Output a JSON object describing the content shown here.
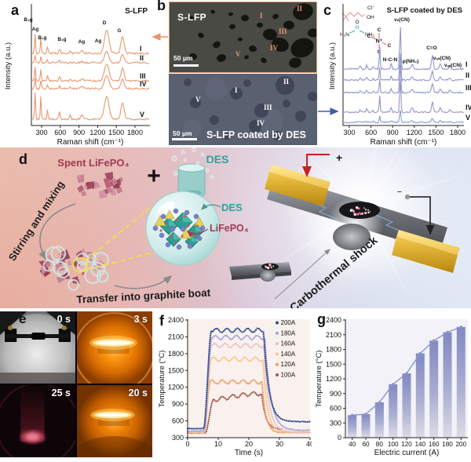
{
  "colors": {
    "panel_a_curve": "#e8986f",
    "panel_a_title": "#e8875a",
    "panel_c_curve": "#9096cb",
    "panel_c_title": "#2c3f96",
    "annotation_red": "#e05a5a",
    "annotation_cyan": "#2fa9c0",
    "connector_orange": "#e8926b",
    "connector_blue": "#4059a8",
    "teal": "#29a39b",
    "maroon": "#a13a55",
    "gold": "#e2b13c",
    "plot_bg_f": "#f9f1ee",
    "plot_bg_g": "#f2f2f8",
    "bar_color_top": "#8089c2",
    "bar_line": "#8d95c9"
  },
  "panel_a": {
    "label": "a"
  },
  "panel_b": {
    "label": "b",
    "top": {
      "title": "S-LFP",
      "scalebar": "50 μm",
      "markers": [
        {
          "t": "I",
          "x": 115,
          "y": 13
        },
        {
          "t": "II",
          "x": 162,
          "y": 4
        },
        {
          "t": "III",
          "x": 139,
          "y": 33
        },
        {
          "t": "IV",
          "x": 128,
          "y": 54
        },
        {
          "t": "V",
          "x": 84,
          "y": 62
        }
      ]
    },
    "bottom": {
      "title": "S-LFP coated by DES",
      "scalebar": "50 μm",
      "markers": [
        {
          "t": "II",
          "x": 146,
          "y": 6
        },
        {
          "t": "I",
          "x": 84,
          "y": 17
        },
        {
          "t": "V",
          "x": 34,
          "y": 29
        },
        {
          "t": "III",
          "x": 121,
          "y": 39
        },
        {
          "t": "IV",
          "x": 112,
          "y": 59
        }
      ]
    }
  },
  "panel_c": {
    "label": "c",
    "molecules": {
      "choline_cl": "Cl⁻",
      "choline_oh": "OH",
      "urea_o": "O",
      "urea_h2n": "H₂N",
      "urea_nh2": "NH₂",
      "frag_n": "N⁺",
      "frag_c": "C"
    }
  },
  "panel_d": {
    "label": "d",
    "spent_label": "Spent LiFePO₄",
    "plus": "+",
    "des_beaker_label": "DES",
    "stirring_label": "Stirring and mixing",
    "des_bubble_label": "DES",
    "lifepo4_bubble_label": "LiFePO₄",
    "transfer_label": "Transfer into graphite boat",
    "shock_label": "Carbothermal shock",
    "electrode_plus": "+",
    "electrode_minus": "−"
  },
  "panel_e": {
    "label": "e",
    "frames": [
      {
        "time": "0 s"
      },
      {
        "time": "3 s"
      },
      {
        "time": "25 s"
      },
      {
        "time": "20 s"
      }
    ]
  },
  "panel_f": {
    "label": "f"
  },
  "panel_g": {
    "label": "g"
  },
  "chart_data": [
    {
      "id": "panel_a_raman",
      "panel": "a",
      "type": "line",
      "title": "S-LFP",
      "xlabel": "Raman shift (cm⁻¹)",
      "ylabel": "Intensity (a.u.)",
      "xlim": [
        130,
        2030
      ],
      "x_ticks": [
        300,
        600,
        900,
        1200,
        1500,
        1800
      ],
      "curves": [
        "I",
        "II",
        "III",
        "IV",
        "V"
      ],
      "peaks": [
        {
          "label": "B₂g",
          "x": 195
        },
        {
          "label": "Ag",
          "x": 287
        },
        {
          "label": "B₁g",
          "x": 395
        },
        {
          "label": "B₁g",
          "x": 590
        },
        {
          "label": "Ag",
          "x": 760
        },
        {
          "label": "Ag",
          "x": 950
        },
        {
          "label": "D",
          "x": 1345
        },
        {
          "label": "G",
          "x": 1600
        }
      ]
    },
    {
      "id": "panel_c_raman",
      "panel": "c",
      "type": "line",
      "title": "S-LFP coated by DES",
      "xlabel": "Raman shift (cm⁻¹)",
      "ylabel": "Intensity (a.u.)",
      "xlim": [
        130,
        2030
      ],
      "x_ticks": [
        300,
        600,
        900,
        1200,
        1500,
        1800
      ],
      "curves": [
        "I",
        "II",
        "III",
        "IV",
        "V"
      ],
      "peaks": [
        {
          "label": "N-C-N",
          "x": 880,
          "color": "red"
        },
        {
          "label": "νₛ(CN)",
          "x": 1005,
          "color": "cyan"
        },
        {
          "label": "ρ(NH₂)",
          "x": 1170,
          "color": "cyan"
        },
        {
          "label": "C=O",
          "x": 1450,
          "color": "cyan"
        },
        {
          "label": "νₐₛ(CN)",
          "x": 1560,
          "color": "cyan"
        },
        {
          "label": "νₐₛ(CN)",
          "x": 1690,
          "color": "cyan"
        }
      ]
    },
    {
      "id": "panel_f_temperature_vs_time",
      "panel": "f",
      "type": "scatter",
      "xlabel": "Time (s)",
      "ylabel": "Temperature (°C)",
      "xlim": [
        0,
        40
      ],
      "ylim": [
        300,
        2400
      ],
      "x_ticks": [
        0,
        10,
        20,
        30,
        40
      ],
      "y_ticks": [
        300,
        600,
        900,
        1200,
        1500,
        1800,
        2100,
        2400
      ],
      "legend_position": "top-right",
      "series": [
        {
          "name": "200A",
          "color": "#2d4a8e",
          "start_temp": 465,
          "plateau_temp": 2215,
          "final_temp": 585,
          "heat_on_s": 5.2,
          "heat_off_s": 24.8,
          "trace_end_s": 40
        },
        {
          "name": "180A",
          "color": "#a59fd3",
          "start_temp": 420,
          "plateau_temp": 2090,
          "final_temp": 430,
          "heat_on_s": 5.3,
          "heat_off_s": 25.2,
          "trace_end_s": 40
        },
        {
          "name": "160A",
          "color": "#e7bcca",
          "start_temp": 405,
          "plateau_temp": 1945,
          "final_temp": 400,
          "heat_on_s": 5.4,
          "heat_off_s": 24.9,
          "trace_end_s": 40
        },
        {
          "name": "140A",
          "color": "#f7c687",
          "start_temp": 395,
          "plateau_temp": 1700,
          "final_temp": 395,
          "heat_on_s": 5.5,
          "heat_off_s": 24.6,
          "trace_end_s": 40
        },
        {
          "name": "120A",
          "color": "#f09d62",
          "start_temp": 390,
          "plateau_temp": 1295,
          "final_temp": 390,
          "heat_on_s": 5.4,
          "heat_off_s": 24.3,
          "trace_end_s": 40
        },
        {
          "name": "100A",
          "color": "#a4574c",
          "start_temp": 385,
          "plateau_temp": 1085,
          "final_temp": 450,
          "heat_on_s": 5.8,
          "heat_off_s": 24.2,
          "trace_end_s": 31
        }
      ]
    },
    {
      "id": "panel_g_temperature_vs_current",
      "panel": "g",
      "type": "bar",
      "xlabel": "Electric current (A)",
      "ylabel": "Temperature (°C)",
      "ylim": [
        0,
        2400
      ],
      "y_ticks": [
        0,
        300,
        600,
        900,
        1200,
        1500,
        1800,
        2100,
        2400
      ],
      "categories": [
        40,
        60,
        80,
        100,
        120,
        140,
        160,
        180,
        200
      ],
      "values": [
        460,
        480,
        720,
        1090,
        1310,
        1720,
        1980,
        2150,
        2260
      ],
      "overlay": "line"
    }
  ]
}
